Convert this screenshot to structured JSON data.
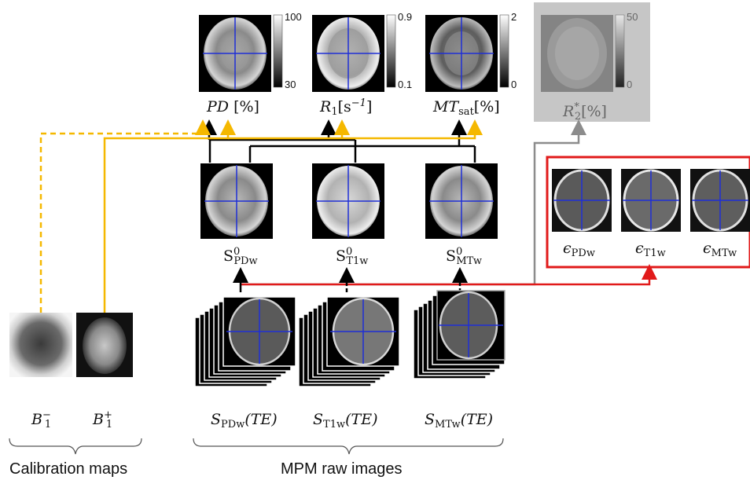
{
  "maps": {
    "pd": {
      "label": "PD",
      "unit": " [%]",
      "cmax": "100",
      "cmin": "30"
    },
    "r1": {
      "label": "R",
      "sub": "1",
      "unit": "[s",
      "unit_sup": "−1",
      "unit_end": "]",
      "cmax": "0.9",
      "cmin": "0.1"
    },
    "mt": {
      "label": "MT",
      "sub": "sat",
      "unit": "[%]",
      "cmax": "2",
      "cmin": "0"
    },
    "r2s": {
      "label": "R",
      "sub": "2",
      "sup": "*",
      "unit": "[%]",
      "cmax": "50",
      "cmin": "0"
    }
  },
  "s0": {
    "pdw": {
      "label": "S",
      "sup": "0",
      "sub": "PDw"
    },
    "t1w": {
      "label": "S",
      "sup": "0",
      "sub": "T1w"
    },
    "mtw": {
      "label": "S",
      "sup": "0",
      "sub": "MTw"
    }
  },
  "errors": {
    "pdw": {
      "label": "ϵ",
      "sub": "PDw"
    },
    "t1w": {
      "label": "ϵ",
      "sub": "T1w"
    },
    "mtw": {
      "label": "ϵ",
      "sub": "MTw"
    }
  },
  "raw": {
    "pdw": {
      "label": "S",
      "sub": "PDw",
      "arg": "(TE)"
    },
    "t1w": {
      "label": "S",
      "sub": "T1w",
      "arg": "(TE)"
    },
    "mtw": {
      "label": "S",
      "sub": "MTw",
      "arg": "(TE)"
    }
  },
  "calib": {
    "b1m": {
      "label": "B",
      "sub": "1",
      "sup": "−"
    },
    "b1p": {
      "label": "B",
      "sub": "1",
      "sup": "+"
    }
  },
  "groups": {
    "calibration": "Calibration maps",
    "raw": "MPM raw images"
  },
  "colors": {
    "yellow": "#f5b800",
    "red": "#e11a1a",
    "gray": "#8c8c8c",
    "black": "#000000",
    "crosshair": "#1f2fd6",
    "bgbox": "#c6c6c6"
  }
}
